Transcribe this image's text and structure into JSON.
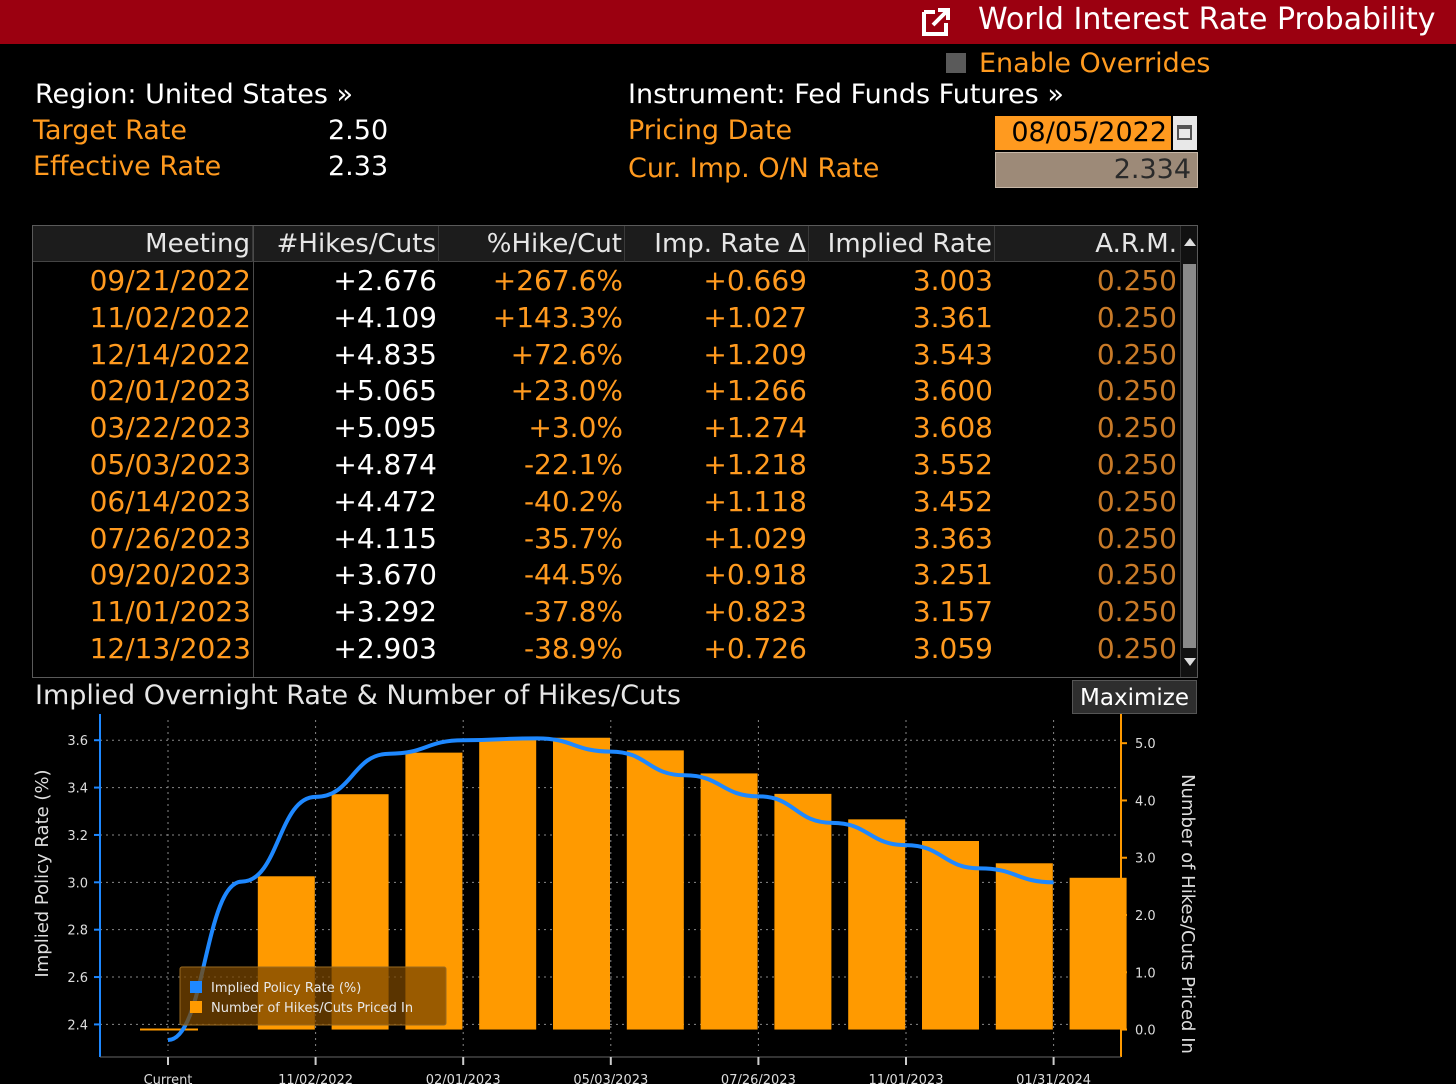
{
  "titlebar": {
    "title": "World Interest Rate Probability",
    "icon": "external-link-icon"
  },
  "overrides": {
    "label": "Enable Overrides",
    "checked": false
  },
  "left_info": {
    "region_label": "Region: United States »",
    "target_rate_label": "Target Rate",
    "target_rate_value": "2.50",
    "effective_rate_label": "Effective Rate",
    "effective_rate_value": "2.33"
  },
  "right_info": {
    "instrument_label": "Instrument: Fed Funds Futures »",
    "pricing_date_label": "Pricing Date",
    "pricing_date_value": "08/05/2022",
    "cur_imp_label": "Cur. Imp. O/N Rate",
    "cur_imp_value": "2.334"
  },
  "table": {
    "columns": [
      "Meeting",
      "#Hikes/Cuts",
      "%Hike/Cut",
      "Imp. Rate Δ",
      "Implied Rate",
      "A.R.M."
    ],
    "rows": [
      [
        "09/21/2022",
        "+2.676",
        "+267.6%",
        "+0.669",
        "3.003",
        "0.250"
      ],
      [
        "11/02/2022",
        "+4.109",
        "+143.3%",
        "+1.027",
        "3.361",
        "0.250"
      ],
      [
        "12/14/2022",
        "+4.835",
        "+72.6%",
        "+1.209",
        "3.543",
        "0.250"
      ],
      [
        "02/01/2023",
        "+5.065",
        "+23.0%",
        "+1.266",
        "3.600",
        "0.250"
      ],
      [
        "03/22/2023",
        "+5.095",
        "+3.0%",
        "+1.274",
        "3.608",
        "0.250"
      ],
      [
        "05/03/2023",
        "+4.874",
        "-22.1%",
        "+1.218",
        "3.552",
        "0.250"
      ],
      [
        "06/14/2023",
        "+4.472",
        "-40.2%",
        "+1.118",
        "3.452",
        "0.250"
      ],
      [
        "07/26/2023",
        "+4.115",
        "-35.7%",
        "+1.029",
        "3.363",
        "0.250"
      ],
      [
        "09/20/2023",
        "+3.670",
        "-44.5%",
        "+0.918",
        "3.251",
        "0.250"
      ],
      [
        "11/01/2023",
        "+3.292",
        "-37.8%",
        "+0.823",
        "3.157",
        "0.250"
      ],
      [
        "12/13/2023",
        "+2.903",
        "-38.9%",
        "+0.726",
        "3.059",
        "0.250"
      ]
    ]
  },
  "chart_panel": {
    "title": "Implied Overnight Rate & Number of Hikes/Cuts",
    "maximize_label": "Maximize"
  },
  "chart_data": {
    "type": "bar",
    "categories": [
      "Current",
      "09/21/2022",
      "11/02/2022",
      "12/14/2022",
      "02/01/2023",
      "03/22/2023",
      "05/03/2023",
      "06/14/2023",
      "07/26/2023",
      "09/20/2023",
      "11/01/2023",
      "12/13/2023",
      "01/31/2024"
    ],
    "x_tick_labels": [
      "Current",
      "11/02/2022",
      "02/01/2023",
      "05/03/2023",
      "07/26/2023",
      "11/01/2023",
      "01/31/2024"
    ],
    "series": [
      {
        "name": "Implied Policy Rate (%)",
        "kind": "line",
        "axis": "left",
        "color": "#1e88ff",
        "values": [
          2.334,
          3.003,
          3.361,
          3.543,
          3.6,
          3.608,
          3.552,
          3.452,
          3.363,
          3.251,
          3.157,
          3.059,
          3.0
        ]
      },
      {
        "name": "Number of Hikes/Cuts Priced In",
        "kind": "bar",
        "axis": "right",
        "color": "#ff9a00",
        "values": [
          0,
          2.676,
          4.109,
          4.835,
          5.065,
          5.095,
          4.874,
          4.472,
          4.115,
          3.67,
          3.292,
          2.903,
          2.65
        ]
      }
    ],
    "left_axis": {
      "label": "Implied Policy Rate (%)",
      "range": [
        2.33,
        3.66
      ],
      "ticks": [
        "2.4",
        "2.6",
        "2.8",
        "3.0",
        "3.2",
        "3.4",
        "3.6"
      ]
    },
    "right_axis": {
      "label": "Number of Hikes/Cuts Priced In",
      "range": [
        -0.2,
        5.3
      ],
      "ticks": [
        "0.0",
        "1.0",
        "2.0",
        "3.0",
        "4.0",
        "5.0"
      ]
    },
    "grid": true,
    "legend": "bottom-left",
    "colors": {
      "axis_left": "#1e88ff",
      "axis_right": "#ff9a00",
      "grid": "#888888"
    }
  }
}
